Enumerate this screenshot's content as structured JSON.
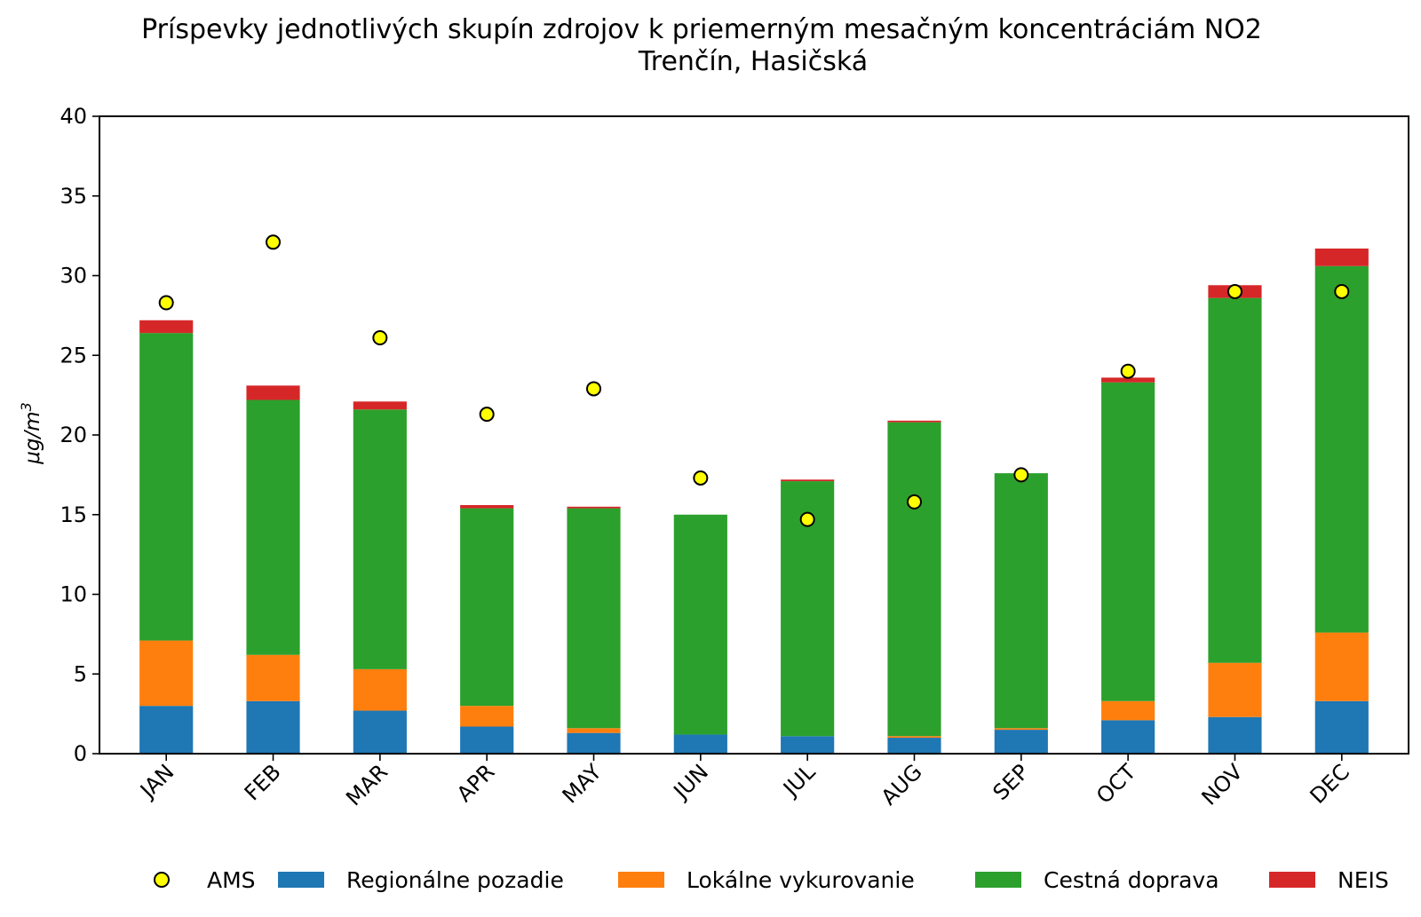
{
  "chart_data": {
    "type": "bar",
    "stacked": true,
    "title": "Príspevky jednotlivých skupín zdrojov k priemerným mesačným koncentráciám NO2",
    "subtitle": "Trenčín, Hasičská",
    "ylabel": "μg/m",
    "ylabel_sup": "3",
    "xlabel": "",
    "ylim": [
      0,
      40
    ],
    "yticks": [
      0,
      5,
      10,
      15,
      20,
      25,
      30,
      35,
      40
    ],
    "categories": [
      "JAN",
      "FEB",
      "MAR",
      "APR",
      "MAY",
      "JUN",
      "JUL",
      "AUG",
      "SEP",
      "OCT",
      "NOV",
      "DEC"
    ],
    "series": [
      {
        "name": "Regionálne pozadie",
        "color": "#1f77b4",
        "values": [
          3.0,
          3.3,
          2.7,
          1.7,
          1.3,
          1.2,
          1.1,
          1.0,
          1.5,
          2.1,
          2.3,
          3.3
        ]
      },
      {
        "name": "Lokálne vykurovanie",
        "color": "#ff7f0e",
        "values": [
          4.1,
          2.9,
          2.6,
          1.3,
          0.3,
          0.0,
          0.0,
          0.1,
          0.1,
          1.2,
          3.4,
          4.3
        ]
      },
      {
        "name": "Cestná doprava",
        "color": "#2ca02c",
        "values": [
          19.3,
          16.0,
          16.3,
          12.4,
          13.8,
          13.8,
          16.0,
          19.7,
          16.0,
          20.0,
          22.9,
          23.0
        ]
      },
      {
        "name": "NEIS",
        "color": "#d62728",
        "values": [
          0.8,
          0.9,
          0.5,
          0.2,
          0.1,
          0.0,
          0.1,
          0.1,
          0.0,
          0.3,
          0.8,
          1.1
        ]
      }
    ],
    "markers": {
      "name": "AMS",
      "color": "#ffff00",
      "edgecolor": "#000000",
      "values": [
        28.3,
        32.1,
        26.1,
        21.3,
        22.9,
        17.3,
        14.7,
        15.8,
        17.5,
        24.0,
        29.0,
        29.0
      ]
    },
    "legend": {
      "position": "bottom",
      "entries": [
        "AMS",
        "Regionálne pozadie",
        "Lokálne vykurovanie",
        "Cestná doprava",
        "NEIS"
      ]
    }
  }
}
